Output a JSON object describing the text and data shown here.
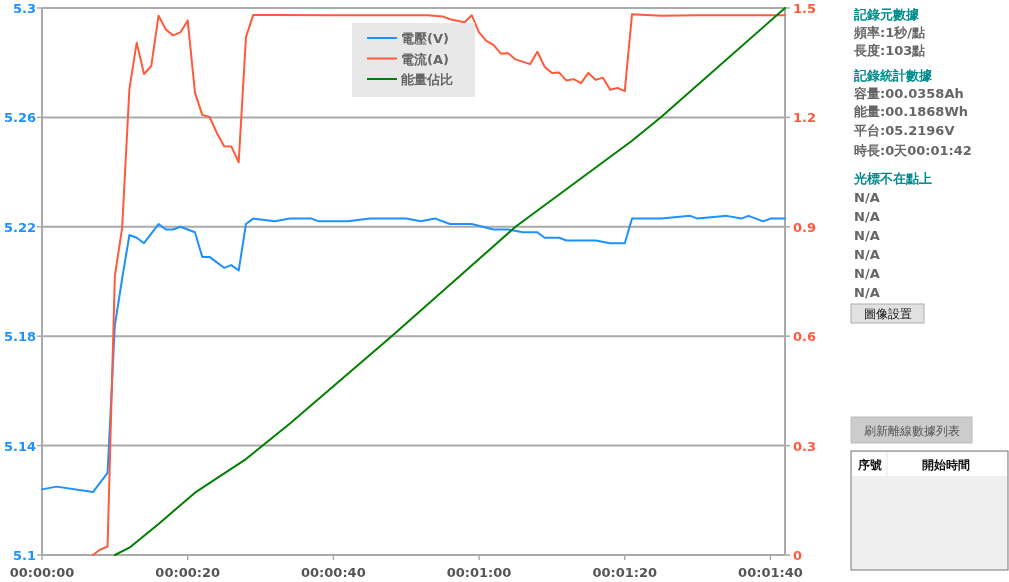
{
  "chart_data": {
    "type": "line",
    "xlim": [
      0,
      102
    ],
    "xticks": [
      {
        "value": 0,
        "label": "00:00:00"
      },
      {
        "value": 20,
        "label": "00:00:20"
      },
      {
        "value": 40,
        "label": "00:00:40"
      },
      {
        "value": 60,
        "label": "00:01:00"
      },
      {
        "value": 80,
        "label": "00:01:20"
      },
      {
        "value": 100,
        "label": "00:01:40"
      }
    ],
    "ylim": [
      5.1,
      5.3
    ],
    "yticks": [
      5.1,
      5.14,
      5.18,
      5.22,
      5.26,
      5.3
    ],
    "y2lim": [
      0,
      1.5
    ],
    "y2ticks": [
      0,
      0.3,
      0.6,
      0.9,
      1.2,
      1.5
    ],
    "grid": "y",
    "legend": "top",
    "marker": "none",
    "line_style": "solid",
    "series": [
      {
        "name": "電壓(V)",
        "color": "#1e90ff",
        "x": [
          0,
          2,
          7,
          9,
          10,
          11,
          12,
          13,
          14,
          16,
          17,
          18,
          19,
          20,
          21,
          22,
          23,
          24,
          25,
          26,
          27,
          28,
          29,
          32,
          34,
          37,
          38,
          42,
          45,
          50,
          52,
          54,
          56,
          59,
          62,
          64,
          66,
          68,
          69,
          71,
          72,
          74,
          76,
          78,
          79,
          80,
          81,
          85,
          89,
          90,
          94,
          96,
          97,
          99,
          100,
          102
        ],
        "values": [
          5.124,
          5.125,
          5.123,
          5.13,
          5.184,
          5.201,
          5.217,
          5.216,
          5.214,
          5.221,
          5.219,
          5.219,
          5.22,
          5.219,
          5.218,
          5.209,
          5.209,
          5.207,
          5.205,
          5.206,
          5.204,
          5.221,
          5.223,
          5.222,
          5.223,
          5.223,
          5.222,
          5.222,
          5.223,
          5.223,
          5.222,
          5.223,
          5.221,
          5.221,
          5.219,
          5.219,
          5.218,
          5.218,
          5.216,
          5.216,
          5.215,
          5.215,
          5.215,
          5.214,
          5.214,
          5.214,
          5.223,
          5.223,
          5.224,
          5.223,
          5.224,
          5.223,
          5.224,
          5.222,
          5.223,
          5.223
        ]
      },
      {
        "name": "電流(A)",
        "color": "#ff5a3c",
        "axis": "y2",
        "x": [
          7,
          8,
          9,
          10,
          11,
          12,
          13,
          14,
          15,
          16,
          17,
          18,
          19,
          20,
          21,
          22,
          23,
          24,
          25,
          26,
          27,
          28,
          29,
          32,
          40,
          53,
          55,
          56,
          58,
          59,
          60,
          61,
          62,
          63,
          64,
          65,
          67,
          68,
          69,
          70,
          71,
          72,
          73,
          74,
          75,
          76,
          77,
          78,
          79,
          80,
          81,
          85,
          90,
          95,
          102
        ],
        "values": [
          0,
          0.015,
          0.023,
          0.765,
          0.897,
          1.278,
          1.405,
          1.319,
          1.341,
          1.479,
          1.441,
          1.425,
          1.433,
          1.466,
          1.268,
          1.207,
          1.201,
          1.158,
          1.121,
          1.12,
          1.077,
          1.42,
          1.481,
          1.481,
          1.48,
          1.48,
          1.477,
          1.469,
          1.461,
          1.48,
          1.433,
          1.41,
          1.398,
          1.375,
          1.376,
          1.359,
          1.346,
          1.38,
          1.339,
          1.322,
          1.323,
          1.301,
          1.305,
          1.294,
          1.322,
          1.303,
          1.309,
          1.276,
          1.281,
          1.272,
          1.483,
          1.479,
          1.48,
          1.48,
          1.48
        ]
      },
      {
        "name": "能量佔比",
        "color": "#008000",
        "axis": "y2",
        "x": [
          10,
          12,
          16,
          21,
          28,
          34,
          48,
          65,
          81,
          85,
          102
        ],
        "values": [
          0,
          0.02,
          0.085,
          0.171,
          0.263,
          0.36,
          0.6,
          0.9,
          1.136,
          1.201,
          1.5
        ]
      }
    ],
    "annotations": [
      "記錄元數據",
      "頻率:1秒/點",
      "長度:103點",
      "記錄統計數據",
      "容量:00.0358Ah",
      "能量:00.1868Wh",
      "平台:05.2196V",
      "時長:0天00:01:42",
      "光標不在點上",
      "N/A",
      "N/A",
      "N/A",
      "N/A",
      "N/A",
      "N/A",
      "圖像設置",
      "刷新離線數據列表",
      "序號",
      "開始時間"
    ]
  }
}
